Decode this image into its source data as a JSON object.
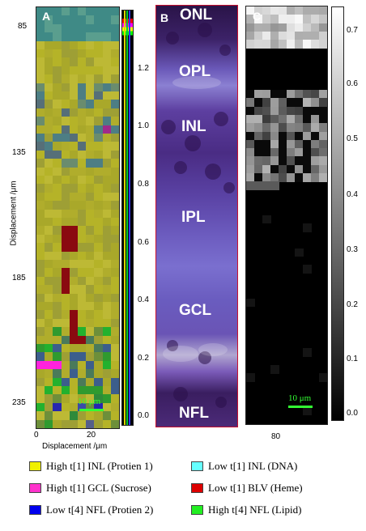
{
  "panel_a": {
    "letter": "A",
    "y_axis_title": "Displacement /μm",
    "x_axis_title": "Displacement /μm",
    "y_ticks": [
      "85",
      "135",
      "185",
      "235"
    ],
    "x_ticks": [
      "0",
      "20"
    ],
    "colorbar_ticks": [
      "1.2",
      "1.0",
      "0.8",
      "0.6",
      "0.4",
      "0.2",
      "0.0"
    ],
    "scale_bar_label": "10 μm"
  },
  "panel_b": {
    "letter": "B",
    "layers": [
      "ONL",
      "OPL",
      "INL",
      "IPL",
      "GCL",
      "NFL"
    ]
  },
  "panel_c": {
    "letter": "C",
    "x_ticks": [
      "80"
    ],
    "colorbar_ticks": [
      "0.7",
      "0.6",
      "0.5",
      "0.4",
      "0.3",
      "0.2",
      "0.1",
      "0.0"
    ],
    "scale_bar_label": "10 μm"
  },
  "legend": [
    {
      "label": "High t[1] INL (Protien 1)",
      "color": "#f0f000"
    },
    {
      "label": "Low t[1] INL (DNA)",
      "color": "#66ffff"
    },
    {
      "label": "High t[1] GCL (Sucrose)",
      "color": "#ff33cc"
    },
    {
      "label": "Low t[1] BLV (Heme)",
      "color": "#dd0000"
    },
    {
      "label": "Low t[4] NFL (Protien 2)",
      "color": "#0000ee"
    },
    {
      "label": "High t[4] NFL (Lipid)",
      "color": "#22ee22"
    }
  ],
  "colors": {
    "map_yellow": "#b5b328",
    "map_teal": "#3f8a86",
    "heme_red": "#8a0a10",
    "scale_green": "#33ff33",
    "histo_purple": "#6a4fa8"
  }
}
